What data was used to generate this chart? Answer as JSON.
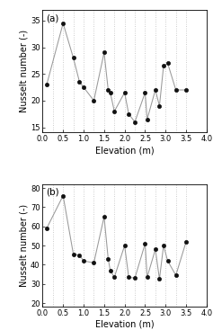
{
  "panel_a": {
    "x": [
      0.1,
      0.5,
      0.75,
      0.9,
      1.0,
      1.25,
      1.5,
      1.6,
      1.65,
      1.75,
      2.0,
      2.1,
      2.25,
      2.5,
      2.55,
      2.75,
      2.85,
      2.95,
      3.05,
      3.25,
      3.5
    ],
    "y": [
      23.0,
      34.5,
      28.0,
      23.5,
      22.5,
      20.0,
      29.0,
      22.0,
      21.5,
      18.0,
      21.5,
      17.5,
      16.0,
      21.5,
      16.5,
      22.0,
      19.0,
      26.5,
      27.0,
      22.0,
      22.0
    ],
    "ylabel": "Nusselt number (-)",
    "xlabel": "Elevation (m)",
    "xlim": [
      0.0,
      4.0
    ],
    "ylim": [
      14,
      37
    ],
    "yticks": [
      15,
      20,
      25,
      30,
      35
    ],
    "xticks": [
      0.0,
      0.5,
      1.0,
      1.5,
      2.0,
      2.5,
      3.0,
      3.5,
      4.0
    ],
    "label": "(a)"
  },
  "panel_b": {
    "x": [
      0.1,
      0.5,
      0.75,
      0.9,
      1.0,
      1.25,
      1.5,
      1.6,
      1.65,
      1.75,
      2.0,
      2.1,
      2.25,
      2.5,
      2.55,
      2.75,
      2.85,
      2.95,
      3.05,
      3.25,
      3.5
    ],
    "y": [
      59.0,
      76.0,
      45.5,
      45.0,
      42.0,
      41.0,
      65.0,
      43.0,
      37.0,
      33.5,
      50.0,
      33.5,
      33.0,
      51.0,
      33.5,
      48.0,
      32.5,
      50.0,
      42.0,
      34.5,
      52.0
    ],
    "ylabel": "Nusselt number (-)",
    "xlabel": "Elevation (m)",
    "xlim": [
      0.0,
      4.0
    ],
    "ylim": [
      18,
      82
    ],
    "yticks": [
      20,
      30,
      40,
      50,
      60,
      70,
      80
    ],
    "xticks": [
      0.0,
      0.5,
      1.0,
      1.5,
      2.0,
      2.5,
      3.0,
      3.5,
      4.0
    ],
    "label": "(b)"
  },
  "vline_positions": [
    0.25,
    0.5,
    0.75,
    1.0,
    1.25,
    1.5,
    1.75,
    2.0,
    2.25,
    2.5,
    2.75,
    3.0,
    3.25,
    3.5
  ],
  "line_color": "#999999",
  "marker_color": "#111111",
  "marker_size": 3.0,
  "vline_color": "#bbbbbb",
  "vline_style": "dotted",
  "bg_color": "#f0f0f0"
}
